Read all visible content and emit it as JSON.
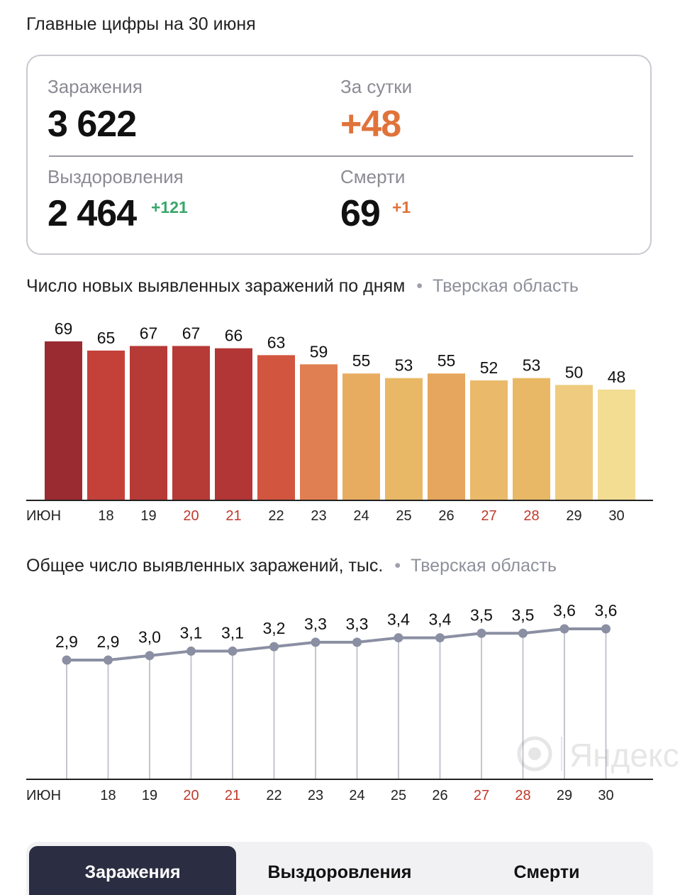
{
  "heading": "Главные цифры на 30 июня",
  "stats": {
    "infections_label": "Заражения",
    "infections_value": "3 622",
    "daily_label": "За сутки",
    "daily_value": "+48",
    "recoveries_label": "Выздоровления",
    "recoveries_value": "2 464",
    "recoveries_delta": "+121",
    "deaths_label": "Смерти",
    "deaths_value": "69",
    "deaths_delta": "+1"
  },
  "colors": {
    "accent_orange": "#e0733a",
    "accent_green": "#3aa66a",
    "weekend_red": "#c0392b",
    "line_gray": "#8b8fa3",
    "tab_active_bg": "#2b2d42"
  },
  "watermark": "Яндекс",
  "tabs": [
    "Заражения",
    "Выздоровления",
    "Смерти"
  ],
  "chart_data": [
    {
      "type": "bar",
      "title": "Число новых выявленных заражений по дням",
      "region": "Тверская область",
      "categories": [
        "ИЮН",
        "18",
        "19",
        "20",
        "21",
        "22",
        "23",
        "24",
        "25",
        "26",
        "27",
        "28",
        "29",
        "30"
      ],
      "weekend": [
        false,
        false,
        false,
        true,
        true,
        false,
        false,
        false,
        false,
        false,
        true,
        true,
        false,
        false
      ],
      "values": [
        69,
        65,
        67,
        67,
        66,
        63,
        59,
        55,
        53,
        55,
        52,
        53,
        50,
        48
      ],
      "colors": [
        "#9a2b31",
        "#c4413a",
        "#b63a36",
        "#b63a36",
        "#b13635",
        "#d2553f",
        "#e07f51",
        "#e8ac60",
        "#e9b866",
        "#e6a65d",
        "#eab969",
        "#e9b866",
        "#eecb7e",
        "#f2dd93"
      ],
      "ylim": [
        0,
        69
      ],
      "grid": false
    },
    {
      "type": "line",
      "title": "Общее число выявленных заражений, тыс.",
      "region": "Тверская область",
      "categories": [
        "ИЮН",
        "18",
        "19",
        "20",
        "21",
        "22",
        "23",
        "24",
        "25",
        "26",
        "27",
        "28",
        "29",
        "30"
      ],
      "weekend": [
        false,
        false,
        false,
        true,
        true,
        false,
        false,
        false,
        false,
        false,
        true,
        true,
        false,
        false
      ],
      "values": [
        2.9,
        2.9,
        3.0,
        3.1,
        3.1,
        3.2,
        3.3,
        3.3,
        3.4,
        3.4,
        3.5,
        3.5,
        3.6,
        3.6
      ],
      "labels": [
        "2,9",
        "2,9",
        "3,0",
        "3,1",
        "3,1",
        "3,2",
        "3,3",
        "3,3",
        "3,4",
        "3,4",
        "3,5",
        "3,5",
        "3,6",
        "3,6"
      ],
      "grid": false
    }
  ]
}
